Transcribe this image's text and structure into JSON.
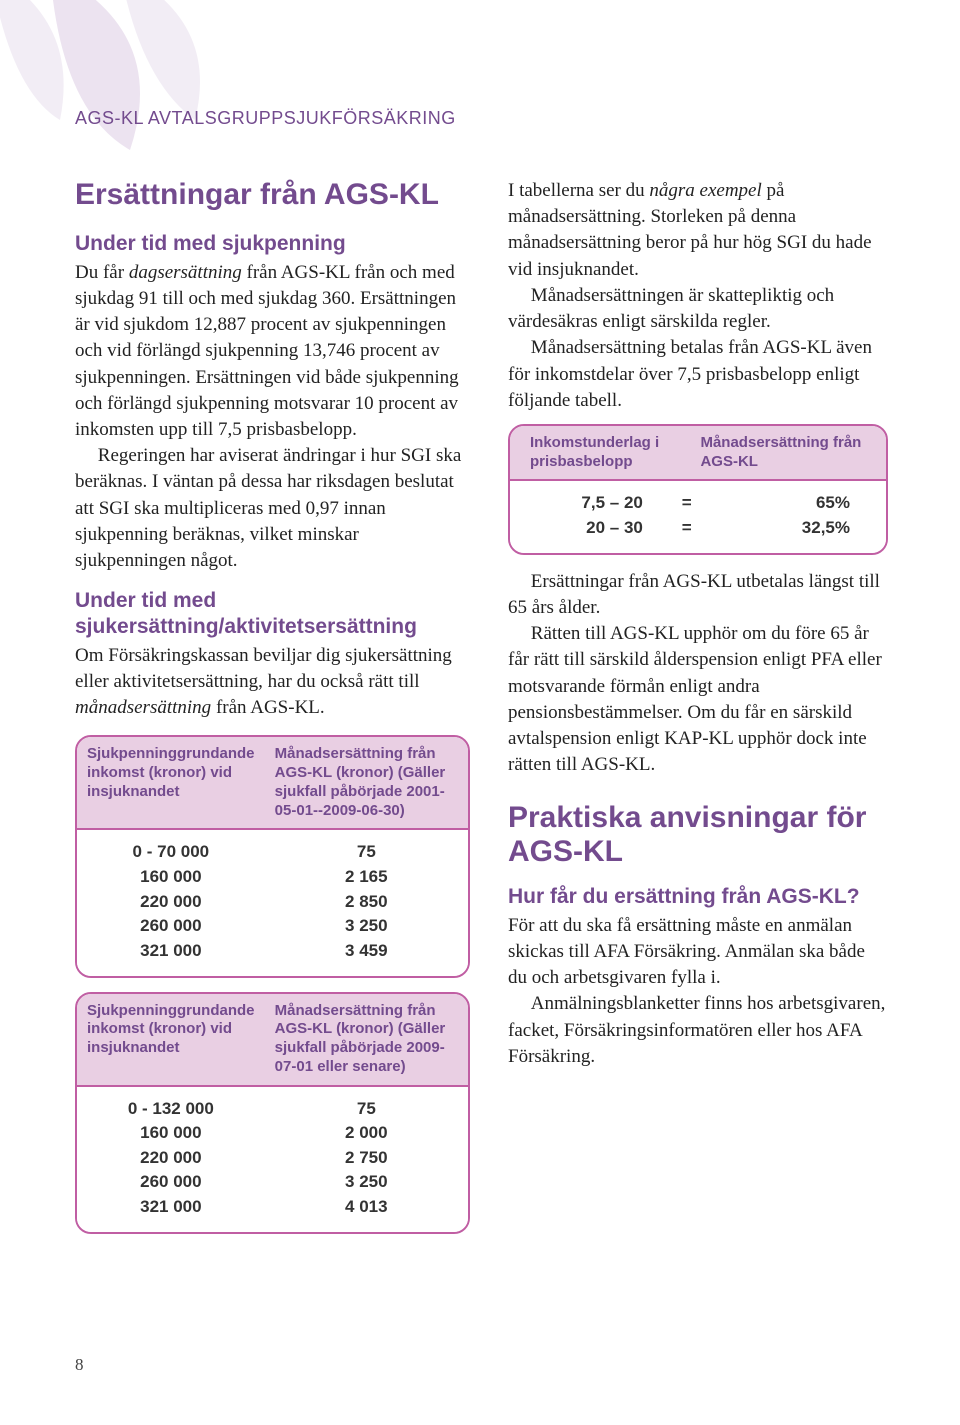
{
  "header": "AGS-KL AVTALSGRUPPSJUKFÖRSÄKRING",
  "page_number": "8",
  "colors": {
    "accent": "#734b8e",
    "table_border": "#c05ea3",
    "table_head_bg": "#e9cfe3",
    "leaf_light": "#f2edf5",
    "leaf_mid": "#ece3f0"
  },
  "left": {
    "title": "Ersättningar från AGS-KL",
    "section1_heading": "Under tid med sjukpenning",
    "section1_p1_a": "Du får ",
    "section1_p1_italic": "dagsersättning",
    "section1_p1_b": " från AGS-KL från och med sjukdag 91 till och med sjukdag 360. Ersättningen är vid sjukdom 12,887 procent av sjukpenningen och vid förlängd sjukpenning 13,746 procent av sjukpenningen. Ersättningen vid både sjukpenning och förlängd sjukpenning motsvarar 10 procent av inkomsten upp till 7,5 prisbasbelopp.",
    "section1_p2": "Regeringen har aviserat ändringar i hur SGI ska beräknas. I väntan på dessa har riksdagen beslutat att SGI ska multipliceras med 0,97 innan sjukpenning beräknas, vilket minskar sjukpenningen något.",
    "section2_heading": "Under tid med sjukersättning/aktivitetsersättning",
    "section2_p1_a": "Om Försäkringskassan beviljar dig sjukersättning eller aktivitetsersättning, har du också rätt till ",
    "section2_p1_italic": "månadsersättning",
    "section2_p1_b": " från AGS-KL.",
    "table1": {
      "head_left": "Sjukpenninggrundande inkomst (kronor) vid insjuknandet",
      "head_right": "Månadsersättning från AGS-KL (kronor) (Gäller sjukfall påbörjade 2001-05-01--2009-06-30)",
      "rows": [
        {
          "a": "0 - 70 000",
          "b": "75"
        },
        {
          "a": "160 000",
          "b": "2 165"
        },
        {
          "a": "220 000",
          "b": "2 850"
        },
        {
          "a": "260 000",
          "b": "3 250"
        },
        {
          "a": "321 000",
          "b": "3 459"
        }
      ]
    },
    "table2": {
      "head_left": "Sjukpenninggrundande inkomst (kronor) vid insjuknandet",
      "head_right": "Månadsersättning från AGS-KL (kronor) (Gäller sjukfall påbörjade 2009-07-01 eller senare)",
      "rows": [
        {
          "a": "0 - 132 000",
          "b": "75"
        },
        {
          "a": "160 000",
          "b": "2 000"
        },
        {
          "a": "220 000",
          "b": "2 750"
        },
        {
          "a": "260 000",
          "b": "3 250"
        },
        {
          "a": "321 000",
          "b": "4 013"
        }
      ]
    }
  },
  "right": {
    "p1_a": "I tabellerna ser du ",
    "p1_italic": "några exempel",
    "p1_b": " på månadsersättning. Storleken på denna månadsersättning beror på hur hög SGI du hade vid insjuknandet.",
    "p2": "Månadsersättningen är skattepliktig och värdesäkras enligt särskilda regler.",
    "p3": "Månadsersättning betalas från AGS-KL även för inkomstdelar över 7,5 prisbasbelopp enligt följande tabell.",
    "table_small": {
      "head_left": "Inkomstunderlag i prisbasbelopp",
      "head_right": "Månadsersättning från AGS-KL",
      "rows": [
        {
          "a": "7,5 – 20",
          "eq": "=",
          "b": "65%"
        },
        {
          "a": "20 – 30",
          "eq": "=",
          "b": "32,5%"
        }
      ]
    },
    "p4": "Ersättningar från AGS-KL utbetalas längst till 65 års ålder.",
    "p5": "Rätten till AGS-KL upphör om du före 65 år får rätt till särskild ålderspension enligt PFA eller motsvarande förmån enligt andra pensionsbestämmelser. Om du får en särskild avtalspension enligt KAP-KL upphör dock inte rätten till AGS-KL.",
    "h_praktiska": "Praktiska anvisningar för AGS-KL",
    "h_hur": "Hur får du ersättning från AGS-KL?",
    "p6": "För att du ska få ersättning måste en anmälan skickas till AFA Försäkring. Anmälan ska både du och arbetsgivaren fylla i.",
    "p7": "Anmälningsblanketter finns hos arbetsgivaren, facket, Försäkringsinformatören eller hos AFA Försäkring."
  }
}
